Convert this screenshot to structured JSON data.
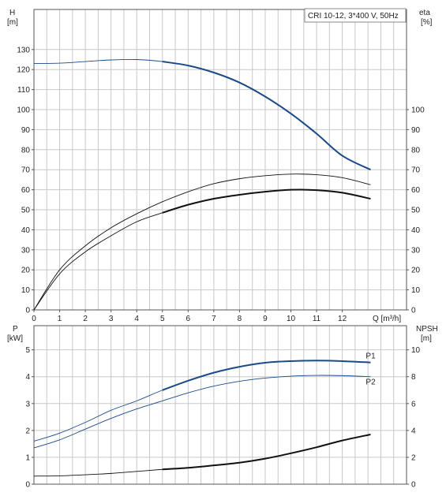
{
  "chart_data": [
    {
      "type": "line",
      "title": "CRI 10-12, 3*400 V, 50Hz",
      "y_label_main": "H",
      "y_unit_main": "[m]",
      "y_label_right": "eta",
      "y_unit_right": "[%]",
      "x_label": "Q [m³/h]",
      "xlim": [
        0,
        14.5
      ],
      "ylim": [
        0,
        150
      ],
      "ylim_right": [
        0,
        150
      ],
      "x_ticks": [
        0,
        1,
        2,
        3,
        4,
        5,
        6,
        7,
        8,
        9,
        10,
        11,
        12
      ],
      "y_ticks": [
        0,
        10,
        20,
        30,
        40,
        50,
        60,
        70,
        80,
        90,
        100,
        110,
        120,
        130
      ],
      "y_ticks_right": [
        0,
        10,
        20,
        30,
        40,
        50,
        60,
        70,
        80,
        90,
        100
      ],
      "grid": true,
      "series": [
        {
          "name": "",
          "axis": "left",
          "color": "#1a4a8a",
          "x": [
            0,
            1,
            2,
            3,
            4,
            5,
            6,
            7,
            8,
            9,
            10,
            11,
            12,
            13.1
          ],
          "y": [
            123,
            123.2,
            124,
            124.8,
            125,
            124,
            122,
            118.5,
            113.5,
            106.5,
            98,
            88,
            77,
            70
          ],
          "heavy_from": 5
        },
        {
          "name": "",
          "axis": "right",
          "color": "#111111",
          "x": [
            0,
            1,
            2,
            3,
            4,
            5,
            6,
            7,
            8,
            9,
            10,
            11,
            12,
            13.1
          ],
          "y": [
            0,
            20,
            32,
            41,
            48,
            54,
            59,
            63,
            65.5,
            67,
            67.8,
            67.5,
            66,
            62.5
          ],
          "heavy_from": 99
        },
        {
          "name": "",
          "axis": "right",
          "color": "#111111",
          "x": [
            0,
            1,
            2,
            3,
            4,
            5,
            6,
            7,
            8,
            9,
            10,
            11,
            12,
            13.1
          ],
          "y": [
            0,
            18,
            29,
            37,
            44,
            48.5,
            52.5,
            55.5,
            57.5,
            59,
            60,
            59.8,
            58.5,
            55.5
          ],
          "heavy_from": 5
        }
      ]
    },
    {
      "type": "line",
      "y_label_main": "P",
      "y_unit_main": "[kW]",
      "y_label_right": "NPSH",
      "y_unit_right": "[m]",
      "xlim": [
        0,
        14.5
      ],
      "ylim": [
        0,
        5.9
      ],
      "ylim_right": [
        0,
        11.8
      ],
      "y_ticks": [
        0,
        1,
        2,
        3,
        4,
        5
      ],
      "y_ticks_right": [
        0,
        2,
        4,
        6,
        8,
        10
      ],
      "grid": true,
      "series": [
        {
          "name": "P1",
          "axis": "left",
          "color": "#1a4a8a",
          "x": [
            0,
            1,
            2,
            3,
            4,
            5,
            6,
            7,
            8,
            9,
            10,
            11,
            12,
            13.1
          ],
          "y": [
            1.6,
            1.9,
            2.3,
            2.75,
            3.1,
            3.5,
            3.85,
            4.15,
            4.37,
            4.52,
            4.58,
            4.6,
            4.58,
            4.53
          ],
          "heavy_from": 5
        },
        {
          "name": "P2",
          "axis": "left",
          "color": "#1a4a8a",
          "x": [
            0,
            1,
            2,
            3,
            4,
            5,
            6,
            7,
            8,
            9,
            10,
            11,
            12,
            13.1
          ],
          "y": [
            1.35,
            1.65,
            2.05,
            2.45,
            2.8,
            3.1,
            3.4,
            3.65,
            3.83,
            3.95,
            4.02,
            4.05,
            4.04,
            4.0
          ],
          "heavy_from": 99
        },
        {
          "name": "",
          "axis": "right",
          "color": "#111111",
          "x": [
            0,
            1,
            2,
            3,
            4,
            5,
            6,
            7,
            8,
            9,
            10,
            11,
            12,
            13.1
          ],
          "y": [
            0.6,
            0.62,
            0.7,
            0.8,
            0.95,
            1.1,
            1.22,
            1.4,
            1.6,
            1.9,
            2.3,
            2.75,
            3.25,
            3.7
          ],
          "heavy_from": 5
        }
      ]
    }
  ]
}
